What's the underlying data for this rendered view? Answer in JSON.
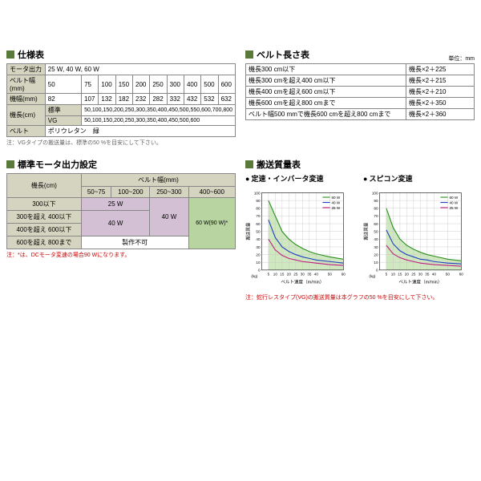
{
  "specTable": {
    "title": "仕様表",
    "rows": [
      {
        "label": "モータ出力",
        "value": "25 W, 40 W, 60 W"
      },
      {
        "label": "ベルト幅(mm)",
        "cells": [
          "50",
          "75",
          "100",
          "150",
          "200",
          "250",
          "300",
          "400",
          "500",
          "600"
        ]
      },
      {
        "label": "機幅(mm)",
        "cells": [
          "82",
          "107",
          "132",
          "182",
          "232",
          "282",
          "332",
          "432",
          "532",
          "632"
        ]
      }
    ],
    "kichoLabel": "機長(cm)",
    "kichoRows": [
      {
        "sub": "標準",
        "value": "50,100,150,200,250,300,350,400,450,500,550,600,700,800"
      },
      {
        "sub": "VG",
        "value": "50,100,150,200,250,300,350,400,450,500,600"
      }
    ],
    "beltRow": {
      "label": "ベルト",
      "value": "ポリウレタン　緑"
    },
    "note": "注：VGタイプの搬送量は、標準の50 %を目安にして下さい。"
  },
  "beltLengthTable": {
    "title": "ベルト長さ表",
    "unit": "単位：mm",
    "rows": [
      {
        "cond": "機長300 cm以下",
        "calc": "機長×2＋225"
      },
      {
        "cond": "機長300 cmを超え400 cm以下",
        "calc": "機長×2＋215"
      },
      {
        "cond": "機長400 cmを超え600 cm以下",
        "calc": "機長×2＋210"
      },
      {
        "cond": "機長600 cmを超え800 cmまで",
        "calc": "機長×2＋350"
      },
      {
        "cond": "ベルト幅500 mmで機長600 cmを超え800 cmまで",
        "calc": "機長×2＋360"
      }
    ]
  },
  "motorTable": {
    "title": "標準モータ出力設定",
    "rowHeader": "機長(cm)",
    "colHeader": "ベルト幅(mm)",
    "cols": [
      "50~75",
      "100~200",
      "250~300",
      "400~600"
    ],
    "rows": [
      "300以下",
      "300を超え 400以下",
      "400を超え 600以下",
      "600を超え 800まで"
    ],
    "w25": "25 W",
    "w40": "40 W",
    "w60": "60 W(90 W)*",
    "ng": "製作不可",
    "note": "注：*は、DCモータ変速の場合90 Wになります。"
  },
  "charts": {
    "sectionTitle": "搬送質量表",
    "chart1": {
      "title": "定速・インバータ変速",
      "ylabel": "搬送質量",
      "yunit": "(kg)",
      "xlabel": "ベルト速度（m/min）",
      "ylim": [
        0,
        100
      ],
      "ytick": 10,
      "xlim": [
        0,
        60
      ],
      "xticks": [
        5,
        10,
        15,
        20,
        25,
        30,
        35,
        40,
        50,
        60
      ],
      "bg": "#ffffff",
      "grid": "#c0c0c0",
      "fillColor": "#d0e8c0",
      "series": [
        {
          "name": "60 W",
          "color": "#2a9020",
          "pts": [
            [
              5,
              90
            ],
            [
              10,
              70
            ],
            [
              15,
              50
            ],
            [
              20,
              40
            ],
            [
              25,
              33
            ],
            [
              30,
              28
            ],
            [
              35,
              24
            ],
            [
              40,
              21
            ],
            [
              50,
              17
            ],
            [
              60,
              14
            ]
          ]
        },
        {
          "name": "40 W",
          "color": "#2040c0",
          "pts": [
            [
              5,
              65
            ],
            [
              10,
              42
            ],
            [
              15,
              30
            ],
            [
              20,
              24
            ],
            [
              25,
              20
            ],
            [
              30,
              17
            ],
            [
              35,
              15
            ],
            [
              40,
              13
            ],
            [
              50,
              11
            ],
            [
              60,
              9
            ]
          ]
        },
        {
          "name": "25 W",
          "color": "#c02080",
          "pts": [
            [
              5,
              40
            ],
            [
              10,
              26
            ],
            [
              15,
              19
            ],
            [
              20,
              15
            ],
            [
              25,
              13
            ],
            [
              30,
              11
            ],
            [
              35,
              10
            ],
            [
              40,
              9
            ],
            [
              50,
              7
            ],
            [
              60,
              6
            ]
          ]
        }
      ],
      "y2label": "ベルト幅によるスリップ限界",
      "y2unit": "mm",
      "y2ticks": [
        150,
        200,
        300,
        500
      ]
    },
    "chart2": {
      "title": "スピコン変速",
      "ylabel": "搬送質量",
      "yunit": "(kg)",
      "xlabel": "ベルト速度（m/min）",
      "ylim": [
        0,
        100
      ],
      "ytick": 10,
      "xlim": [
        0,
        60
      ],
      "xticks": [
        5,
        10,
        15,
        20,
        25,
        30,
        35,
        40,
        50,
        60
      ],
      "bg": "#ffffff",
      "grid": "#c0c0c0",
      "fillColor": "#d0e8c0",
      "series": [
        {
          "name": "60 W",
          "color": "#2a9020",
          "pts": [
            [
              5,
              80
            ],
            [
              10,
              55
            ],
            [
              15,
              40
            ],
            [
              20,
              32
            ],
            [
              25,
              27
            ],
            [
              30,
              23
            ],
            [
              35,
              20
            ],
            [
              40,
              18
            ],
            [
              50,
              14
            ],
            [
              60,
              12
            ]
          ]
        },
        {
          "name": "40 W",
          "color": "#2040c0",
          "pts": [
            [
              5,
              52
            ],
            [
              10,
              34
            ],
            [
              15,
              25
            ],
            [
              20,
              20
            ],
            [
              25,
              17
            ],
            [
              30,
              14
            ],
            [
              35,
              13
            ],
            [
              40,
              11
            ],
            [
              50,
              9
            ],
            [
              60,
              8
            ]
          ]
        },
        {
          "name": "25 W",
          "color": "#c02080",
          "pts": [
            [
              5,
              32
            ],
            [
              10,
              21
            ],
            [
              15,
              16
            ],
            [
              20,
              13
            ],
            [
              25,
              11
            ],
            [
              30,
              9
            ],
            [
              35,
              8
            ],
            [
              40,
              7
            ],
            [
              50,
              6
            ],
            [
              60,
              5
            ]
          ]
        }
      ],
      "y2label": "ベルト幅によるスリップ限界",
      "y2unit": "mm",
      "y2ticks": [
        150,
        200,
        300,
        500
      ]
    },
    "note": "注：蛇行レスタイプ(VG)の搬送質量は本グラフの50 %を目安にして下さい。"
  }
}
